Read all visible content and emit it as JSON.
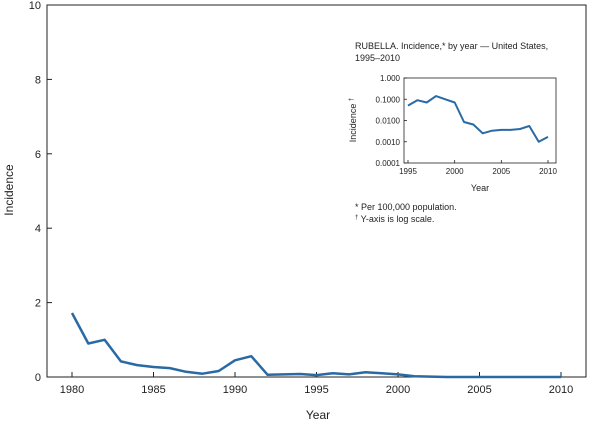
{
  "chart_data": [
    {
      "type": "line",
      "title": "",
      "xlabel": "Year",
      "ylabel": "Incidence",
      "xlim": [
        1980,
        2010
      ],
      "ylim": [
        0,
        10
      ],
      "x_ticks": [
        1980,
        1985,
        1990,
        1995,
        2000,
        2005,
        2010
      ],
      "y_ticks": [
        0,
        2,
        4,
        6,
        8,
        10
      ],
      "grid": false,
      "series": [
        {
          "color": "#2a6aa4",
          "x": [
            1980,
            1981,
            1982,
            1983,
            1984,
            1985,
            1986,
            1987,
            1988,
            1989,
            1990,
            1991,
            1992,
            1993,
            1994,
            1995,
            1996,
            1997,
            1998,
            1999,
            2000,
            2001,
            2002,
            2003,
            2004,
            2005,
            2006,
            2007,
            2008,
            2009,
            2010
          ],
          "values": [
            1.72,
            0.9,
            1.0,
            0.42,
            0.32,
            0.27,
            0.24,
            0.14,
            0.09,
            0.16,
            0.45,
            0.56,
            0.06,
            0.07,
            0.08,
            0.05,
            0.1,
            0.07,
            0.13,
            0.1,
            0.07,
            0.02,
            0.01,
            0.0,
            0.0,
            0.0,
            0.0,
            0.0,
            0.0,
            0.0,
            0.0
          ]
        }
      ]
    },
    {
      "type": "line",
      "title": "RUBELLA. Incidence,* by year — United States, 1995–2010",
      "title_lines": [
        "RUBELLA. Incidence,* by year — United States,",
        "1995–2010"
      ],
      "xlabel": "Year",
      "ylabel": "Incidence",
      "ylabel_mark": "†",
      "y_scale": "log",
      "xlim": [
        1995,
        2010
      ],
      "ylim": [
        0.0001,
        1.0
      ],
      "x_ticks": [
        1995,
        2000,
        2005,
        2010
      ],
      "y_ticks": [
        1.0,
        0.1,
        0.01,
        0.001,
        0.0001
      ],
      "y_tick_labels": [
        "1.000",
        "0.1000",
        "0.0100",
        "0.0010",
        "0.0001"
      ],
      "grid": false,
      "series": [
        {
          "color": "#2a6aa4",
          "x": [
            1995,
            1996,
            1997,
            1998,
            1999,
            2000,
            2001,
            2002,
            2003,
            2004,
            2005,
            2006,
            2007,
            2008,
            2009,
            2010
          ],
          "values": [
            0.05,
            0.09,
            0.07,
            0.14,
            0.1,
            0.07,
            0.0085,
            0.0065,
            0.0025,
            0.0033,
            0.0036,
            0.0036,
            0.004,
            0.0055,
            0.001,
            0.0017
          ]
        }
      ],
      "footnotes": [
        {
          "mark": "*",
          "text": " Per 100,000 population."
        },
        {
          "mark": "†",
          "text": " Y-axis is log scale."
        }
      ]
    }
  ]
}
